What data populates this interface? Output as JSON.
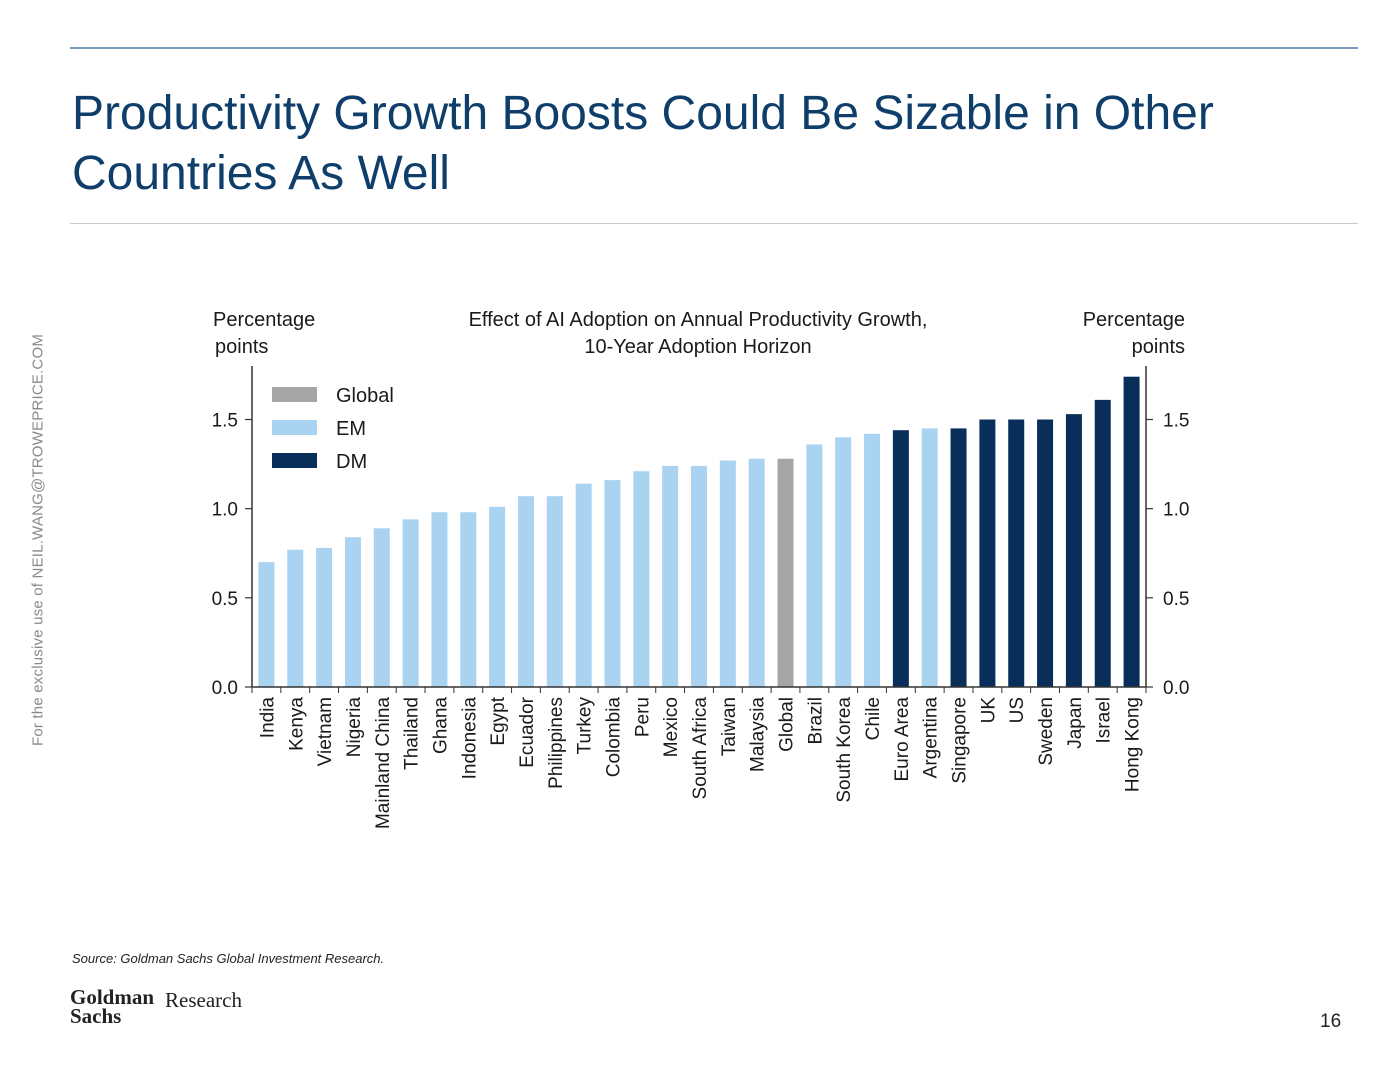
{
  "slide": {
    "title": "Productivity Growth Boosts Could Be Sizable in Other Countries As Well",
    "side_note": "For the exclusive use of NEIL.WANG@TROWEPRICE.COM",
    "source": "Source: Goldman Sachs Global Investment Research.",
    "logo_text": "Goldman Sachs",
    "logo_research": "Research",
    "page_number": "16"
  },
  "chart_data": {
    "type": "bar",
    "title": "Effect of AI Adoption on Annual Productivity Growth,",
    "subtitle": "10-Year Adoption Horizon",
    "ylabel_left": [
      "Percentage",
      "points"
    ],
    "ylabel_right": [
      "Percentage",
      "points"
    ],
    "ylim": [
      0,
      1.8
    ],
    "yticks": [
      0.0,
      0.5,
      1.0,
      1.5
    ],
    "ytick_labels": [
      "0.0",
      "0.5",
      "1.0",
      "1.5"
    ],
    "legend_position": "top-left",
    "legend": [
      {
        "group": "Global",
        "label": "Global",
        "color": "#a6a6a6"
      },
      {
        "group": "EM",
        "label": "EM",
        "color": "#a9d3f0"
      },
      {
        "group": "DM",
        "label": "DM",
        "color": "#0a2e5a"
      }
    ],
    "categories": [
      "India",
      "Kenya",
      "Vietnam",
      "Nigeria",
      "Mainland China",
      "Thailand",
      "Ghana",
      "Indonesia",
      "Egypt",
      "Ecuador",
      "Philippines",
      "Turkey",
      "Colombia",
      "Peru",
      "Mexico",
      "South Africa",
      "Taiwan",
      "Malaysia",
      "Global",
      "Brazil",
      "South Korea",
      "Chile",
      "Euro Area",
      "Argentina",
      "Singapore",
      "UK",
      "US",
      "Sweden",
      "Japan",
      "Israel",
      "Hong Kong"
    ],
    "values": [
      0.7,
      0.77,
      0.78,
      0.84,
      0.89,
      0.94,
      0.98,
      0.98,
      1.01,
      1.07,
      1.07,
      1.14,
      1.16,
      1.21,
      1.24,
      1.24,
      1.27,
      1.28,
      1.28,
      1.36,
      1.4,
      1.42,
      1.44,
      1.45,
      1.45,
      1.5,
      1.5,
      1.5,
      1.53,
      1.61,
      1.74
    ],
    "groups": [
      "EM",
      "EM",
      "EM",
      "EM",
      "EM",
      "EM",
      "EM",
      "EM",
      "EM",
      "EM",
      "EM",
      "EM",
      "EM",
      "EM",
      "EM",
      "EM",
      "EM",
      "EM",
      "Global",
      "EM",
      "EM",
      "EM",
      "DM",
      "EM",
      "DM",
      "DM",
      "DM",
      "DM",
      "DM",
      "DM",
      "DM"
    ]
  }
}
